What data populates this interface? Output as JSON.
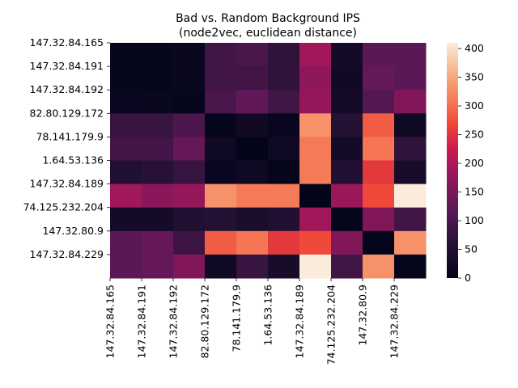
{
  "chart_data": {
    "type": "heatmap",
    "title": "Bad vs. Random Background IPS",
    "subtitle": "(node2vec, euclidean distance)",
    "row_labels": [
      "147.32.84.165",
      "147.32.84.191",
      "147.32.84.192",
      "82.80.129.172",
      "78.141.179.9",
      "1.64.53.136",
      "147.32.84.189",
      "74.125.232.204",
      "147.32.80.9",
      "147.32.84.229"
    ],
    "col_labels": [
      "147.32.84.165",
      "147.32.84.191",
      "147.32.84.192",
      "82.80.129.172",
      "78.141.179.9",
      "1.64.53.136",
      "147.32.84.189",
      "74.125.232.204",
      "147.32.80.9",
      "147.32.84.229"
    ],
    "values": [
      [
        5,
        5,
        12,
        90,
        100,
        70,
        190,
        30,
        120,
        120
      ],
      [
        5,
        3,
        12,
        90,
        90,
        70,
        175,
        25,
        130,
        120
      ],
      [
        10,
        12,
        5,
        100,
        125,
        90,
        180,
        30,
        110,
        160
      ],
      [
        80,
        80,
        105,
        3,
        25,
        10,
        330,
        55,
        285,
        20
      ],
      [
        95,
        95,
        130,
        20,
        2,
        20,
        310,
        30,
        305,
        70
      ],
      [
        50,
        60,
        80,
        10,
        20,
        3,
        310,
        50,
        255,
        35
      ],
      [
        190,
        170,
        180,
        330,
        310,
        310,
        2,
        185,
        270,
        410
      ],
      [
        30,
        30,
        50,
        55,
        40,
        50,
        190,
        3,
        160,
        90
      ],
      [
        120,
        130,
        85,
        285,
        305,
        255,
        270,
        160,
        3,
        330
      ],
      [
        120,
        130,
        160,
        20,
        80,
        35,
        410,
        90,
        330,
        3
      ]
    ],
    "colorbar": {
      "min": 0,
      "max": 410,
      "ticks": [
        0,
        50,
        100,
        150,
        200,
        250,
        300,
        350,
        400
      ]
    },
    "colormap": "rocket"
  }
}
